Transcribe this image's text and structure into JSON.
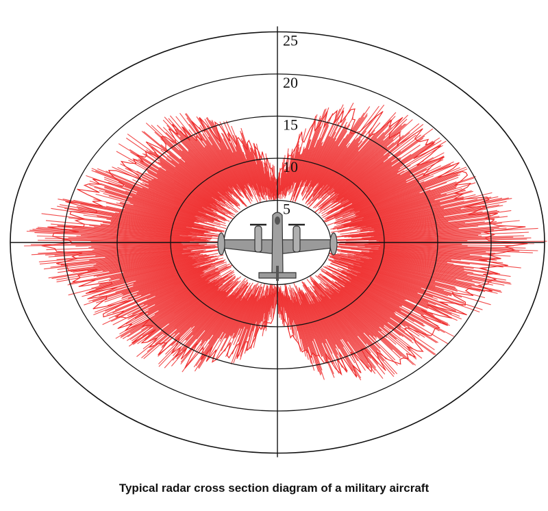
{
  "chart_data": {
    "type": "polar-area",
    "title": "",
    "radial_ticks": [
      "5",
      "10",
      "15",
      "20",
      "25"
    ],
    "radial_tick_values": [
      5,
      10,
      15,
      20,
      25
    ],
    "rlim": [
      0,
      25
    ],
    "grid": true,
    "series": [
      {
        "color": "#ee2b2b",
        "inner_radius": 5,
        "theta_deg": [
          0,
          15,
          30,
          45,
          60,
          75,
          90,
          105,
          120,
          135,
          150,
          165,
          180,
          195,
          210,
          225,
          240,
          255,
          270,
          285,
          300,
          315,
          330,
          345,
          360
        ],
        "r": [
          8,
          16,
          18,
          19,
          19,
          21,
          24,
          21,
          19,
          19,
          18,
          16,
          8,
          14,
          17,
          18,
          18,
          20,
          23,
          20,
          18,
          18,
          17,
          14,
          8
        ]
      }
    ],
    "center_graphic": "aircraft-icon"
  },
  "caption": "Typical radar cross section diagram of a military aircraft"
}
